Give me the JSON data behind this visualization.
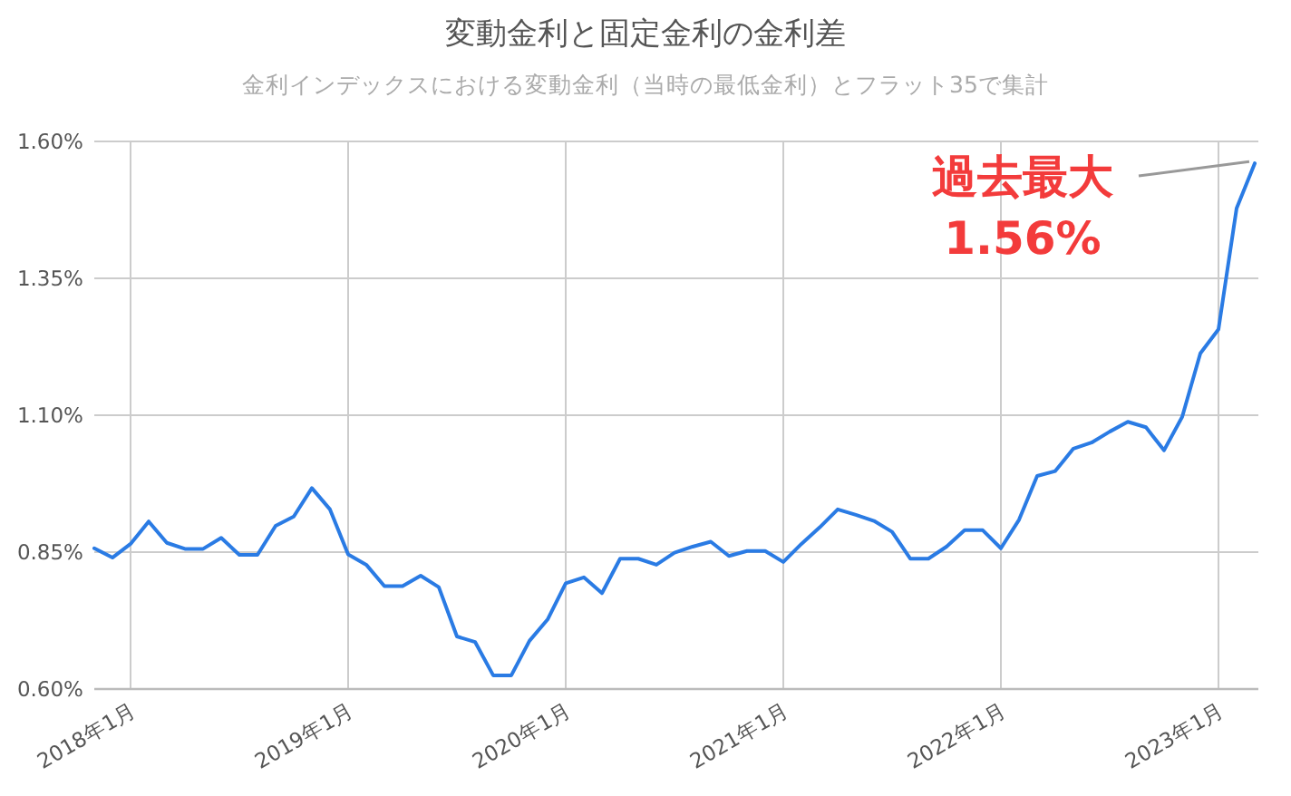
{
  "chart_data": {
    "type": "line",
    "title": "変動金利と固定金利の金利差",
    "subtitle": "金利インデックスにおける変動金利（当時の最低金利）とフラット35で集計",
    "x": [
      "2017-11",
      "2017-12",
      "2018-01",
      "2018-02",
      "2018-03",
      "2018-04",
      "2018-05",
      "2018-06",
      "2018-07",
      "2018-08",
      "2018-09",
      "2018-10",
      "2018-11",
      "2018-12",
      "2019-01",
      "2019-02",
      "2019-03",
      "2019-04",
      "2019-05",
      "2019-06",
      "2019-07",
      "2019-08",
      "2019-09",
      "2019-10",
      "2019-11",
      "2019-12",
      "2020-01",
      "2020-02",
      "2020-03",
      "2020-04",
      "2020-05",
      "2020-06",
      "2020-07",
      "2020-08",
      "2020-09",
      "2020-10",
      "2020-11",
      "2020-12",
      "2021-01",
      "2021-02",
      "2021-03",
      "2021-04",
      "2021-05",
      "2021-06",
      "2021-07",
      "2021-08",
      "2021-09",
      "2021-10",
      "2021-11",
      "2021-12",
      "2022-01",
      "2022-02",
      "2022-03",
      "2022-04",
      "2022-05",
      "2022-06",
      "2022-07",
      "2022-08",
      "2022-09",
      "2022-10",
      "2022-11",
      "2022-12",
      "2023-01",
      "2023-02",
      "2023-03"
    ],
    "series": [
      {
        "color": "#2a7be4",
        "values": [
          0.857,
          0.84,
          0.865,
          0.906,
          0.867,
          0.856,
          0.856,
          0.876,
          0.845,
          0.845,
          0.898,
          0.915,
          0.967,
          0.928,
          0.846,
          0.827,
          0.788,
          0.788,
          0.807,
          0.786,
          0.696,
          0.686,
          0.625,
          0.625,
          0.688,
          0.727,
          0.793,
          0.804,
          0.775,
          0.838,
          0.838,
          0.827,
          0.849,
          0.86,
          0.869,
          0.843,
          0.852,
          0.852,
          0.832,
          0.865,
          0.895,
          0.928,
          0.918,
          0.907,
          0.887,
          0.838,
          0.838,
          0.86,
          0.89,
          0.89,
          0.857,
          0.909,
          0.989,
          0.998,
          1.039,
          1.05,
          1.07,
          1.088,
          1.078,
          1.036,
          1.097,
          1.213,
          1.257,
          1.478,
          1.56
        ]
      }
    ],
    "xlim": [
      "2017-11",
      "2023-03"
    ],
    "xticks": [
      {
        "value": "2018-01",
        "label": "2018年1月"
      },
      {
        "value": "2019-01",
        "label": "2019年1月"
      },
      {
        "value": "2020-01",
        "label": "2020年1月"
      },
      {
        "value": "2021-01",
        "label": "2021年1月"
      },
      {
        "value": "2022-01",
        "label": "2022年1月"
      },
      {
        "value": "2023-01",
        "label": "2023年1月"
      }
    ],
    "ylim": [
      0.6,
      1.6
    ],
    "yticks": [
      {
        "value": 0.6,
        "label": "0.60%"
      },
      {
        "value": 0.85,
        "label": "0.85%"
      },
      {
        "value": 1.1,
        "label": "1.10%"
      },
      {
        "value": 1.35,
        "label": "1.35%"
      },
      {
        "value": 1.6,
        "label": "1.60%"
      }
    ],
    "grid": true,
    "annotations": [
      {
        "text": "過去最大 1.56%",
        "x": "2023-03",
        "y": 1.56
      }
    ]
  }
}
